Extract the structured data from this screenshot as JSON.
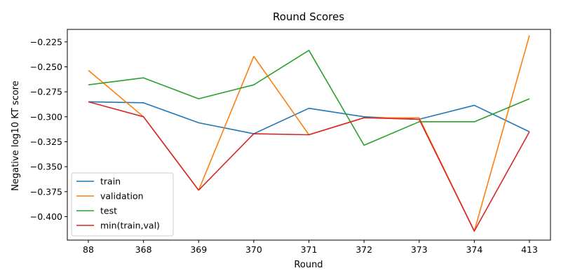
{
  "chart_data": {
    "type": "line",
    "title": "Round Scores",
    "xlabel": "Round",
    "ylabel": "Negative log10 KT score",
    "categories": [
      "88",
      "368",
      "369",
      "370",
      "371",
      "372",
      "373",
      "374",
      "413"
    ],
    "ylim": [
      -0.4235,
      -0.2125
    ],
    "yticks": [
      -0.4,
      -0.375,
      -0.35,
      -0.325,
      -0.3,
      -0.275,
      -0.25,
      -0.225
    ],
    "ytick_labels": [
      "−0.400",
      "−0.375",
      "−0.350",
      "−0.325",
      "−0.300",
      "−0.275",
      "−0.250",
      "−0.225"
    ],
    "grid": false,
    "legend_position": "lower-left",
    "series": [
      {
        "name": "train",
        "color": "#1f77b4",
        "values": [
          -0.285,
          -0.286,
          -0.306,
          -0.317,
          -0.2915,
          -0.3,
          -0.3025,
          -0.2885,
          -0.315
        ]
      },
      {
        "name": "validation",
        "color": "#ff7f0e",
        "values": [
          -0.2535,
          -0.3,
          -0.3735,
          -0.2395,
          -0.318,
          -0.301,
          -0.301,
          -0.4145,
          -0.2185
        ]
      },
      {
        "name": "test",
        "color": "#2ca02c",
        "values": [
          -0.268,
          -0.261,
          -0.282,
          -0.268,
          -0.2335,
          -0.3285,
          -0.305,
          -0.305,
          -0.282
        ]
      },
      {
        "name": "min(train,val)",
        "color": "#d62728",
        "values": [
          -0.285,
          -0.3,
          -0.3735,
          -0.317,
          -0.318,
          -0.301,
          -0.3025,
          -0.4145,
          -0.315
        ]
      }
    ]
  }
}
